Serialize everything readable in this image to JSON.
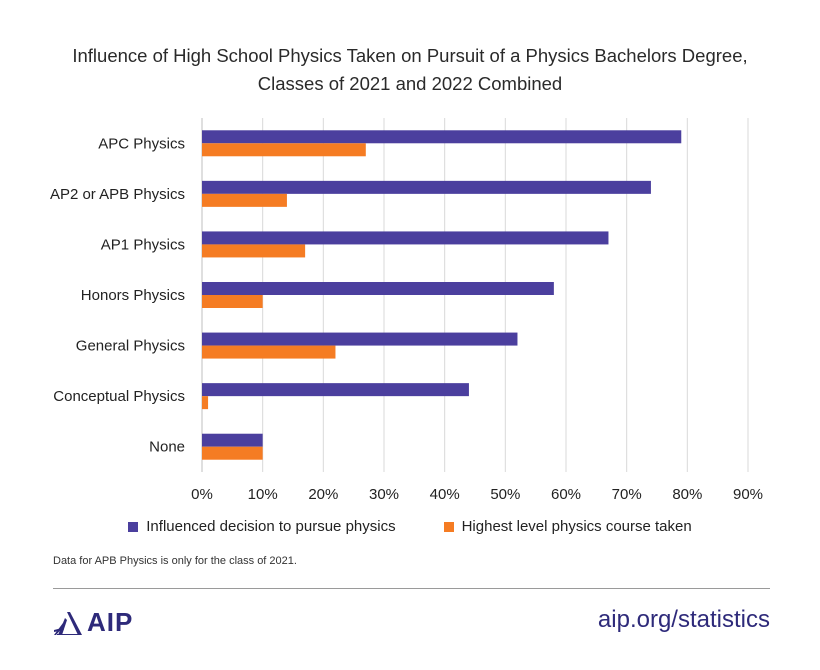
{
  "chart_data": {
    "type": "bar",
    "orientation": "horizontal",
    "title_line1": "Influence of High School Physics Taken on Pursuit of a Physics Bachelors Degree,",
    "title_line2": "Classes of 2021 and 2022 Combined",
    "categories": [
      "APC Physics",
      "AP2 or APB Physics",
      "AP1 Physics",
      "Honors Physics",
      "General Physics",
      "Conceptual Physics",
      "None"
    ],
    "series": [
      {
        "name": "Influenced decision to pursue physics",
        "color": "#4b3f9e",
        "values": [
          79,
          74,
          67,
          58,
          52,
          44,
          10
        ]
      },
      {
        "name": "Highest level physics course taken",
        "color": "#f57c23",
        "values": [
          27,
          14,
          17,
          10,
          22,
          1,
          10
        ]
      }
    ],
    "xlim": [
      0,
      90
    ],
    "xticks": [
      "0%",
      "10%",
      "20%",
      "30%",
      "40%",
      "50%",
      "60%",
      "70%",
      "80%",
      "90%"
    ],
    "grid": true,
    "legend_position": "bottom"
  },
  "footnote": "Data for APB Physics is only for the class of 2021.",
  "footer": {
    "logo_text": "AIP",
    "logo_icon": "aip-sunburst-icon",
    "url": "aip.org/statistics"
  }
}
